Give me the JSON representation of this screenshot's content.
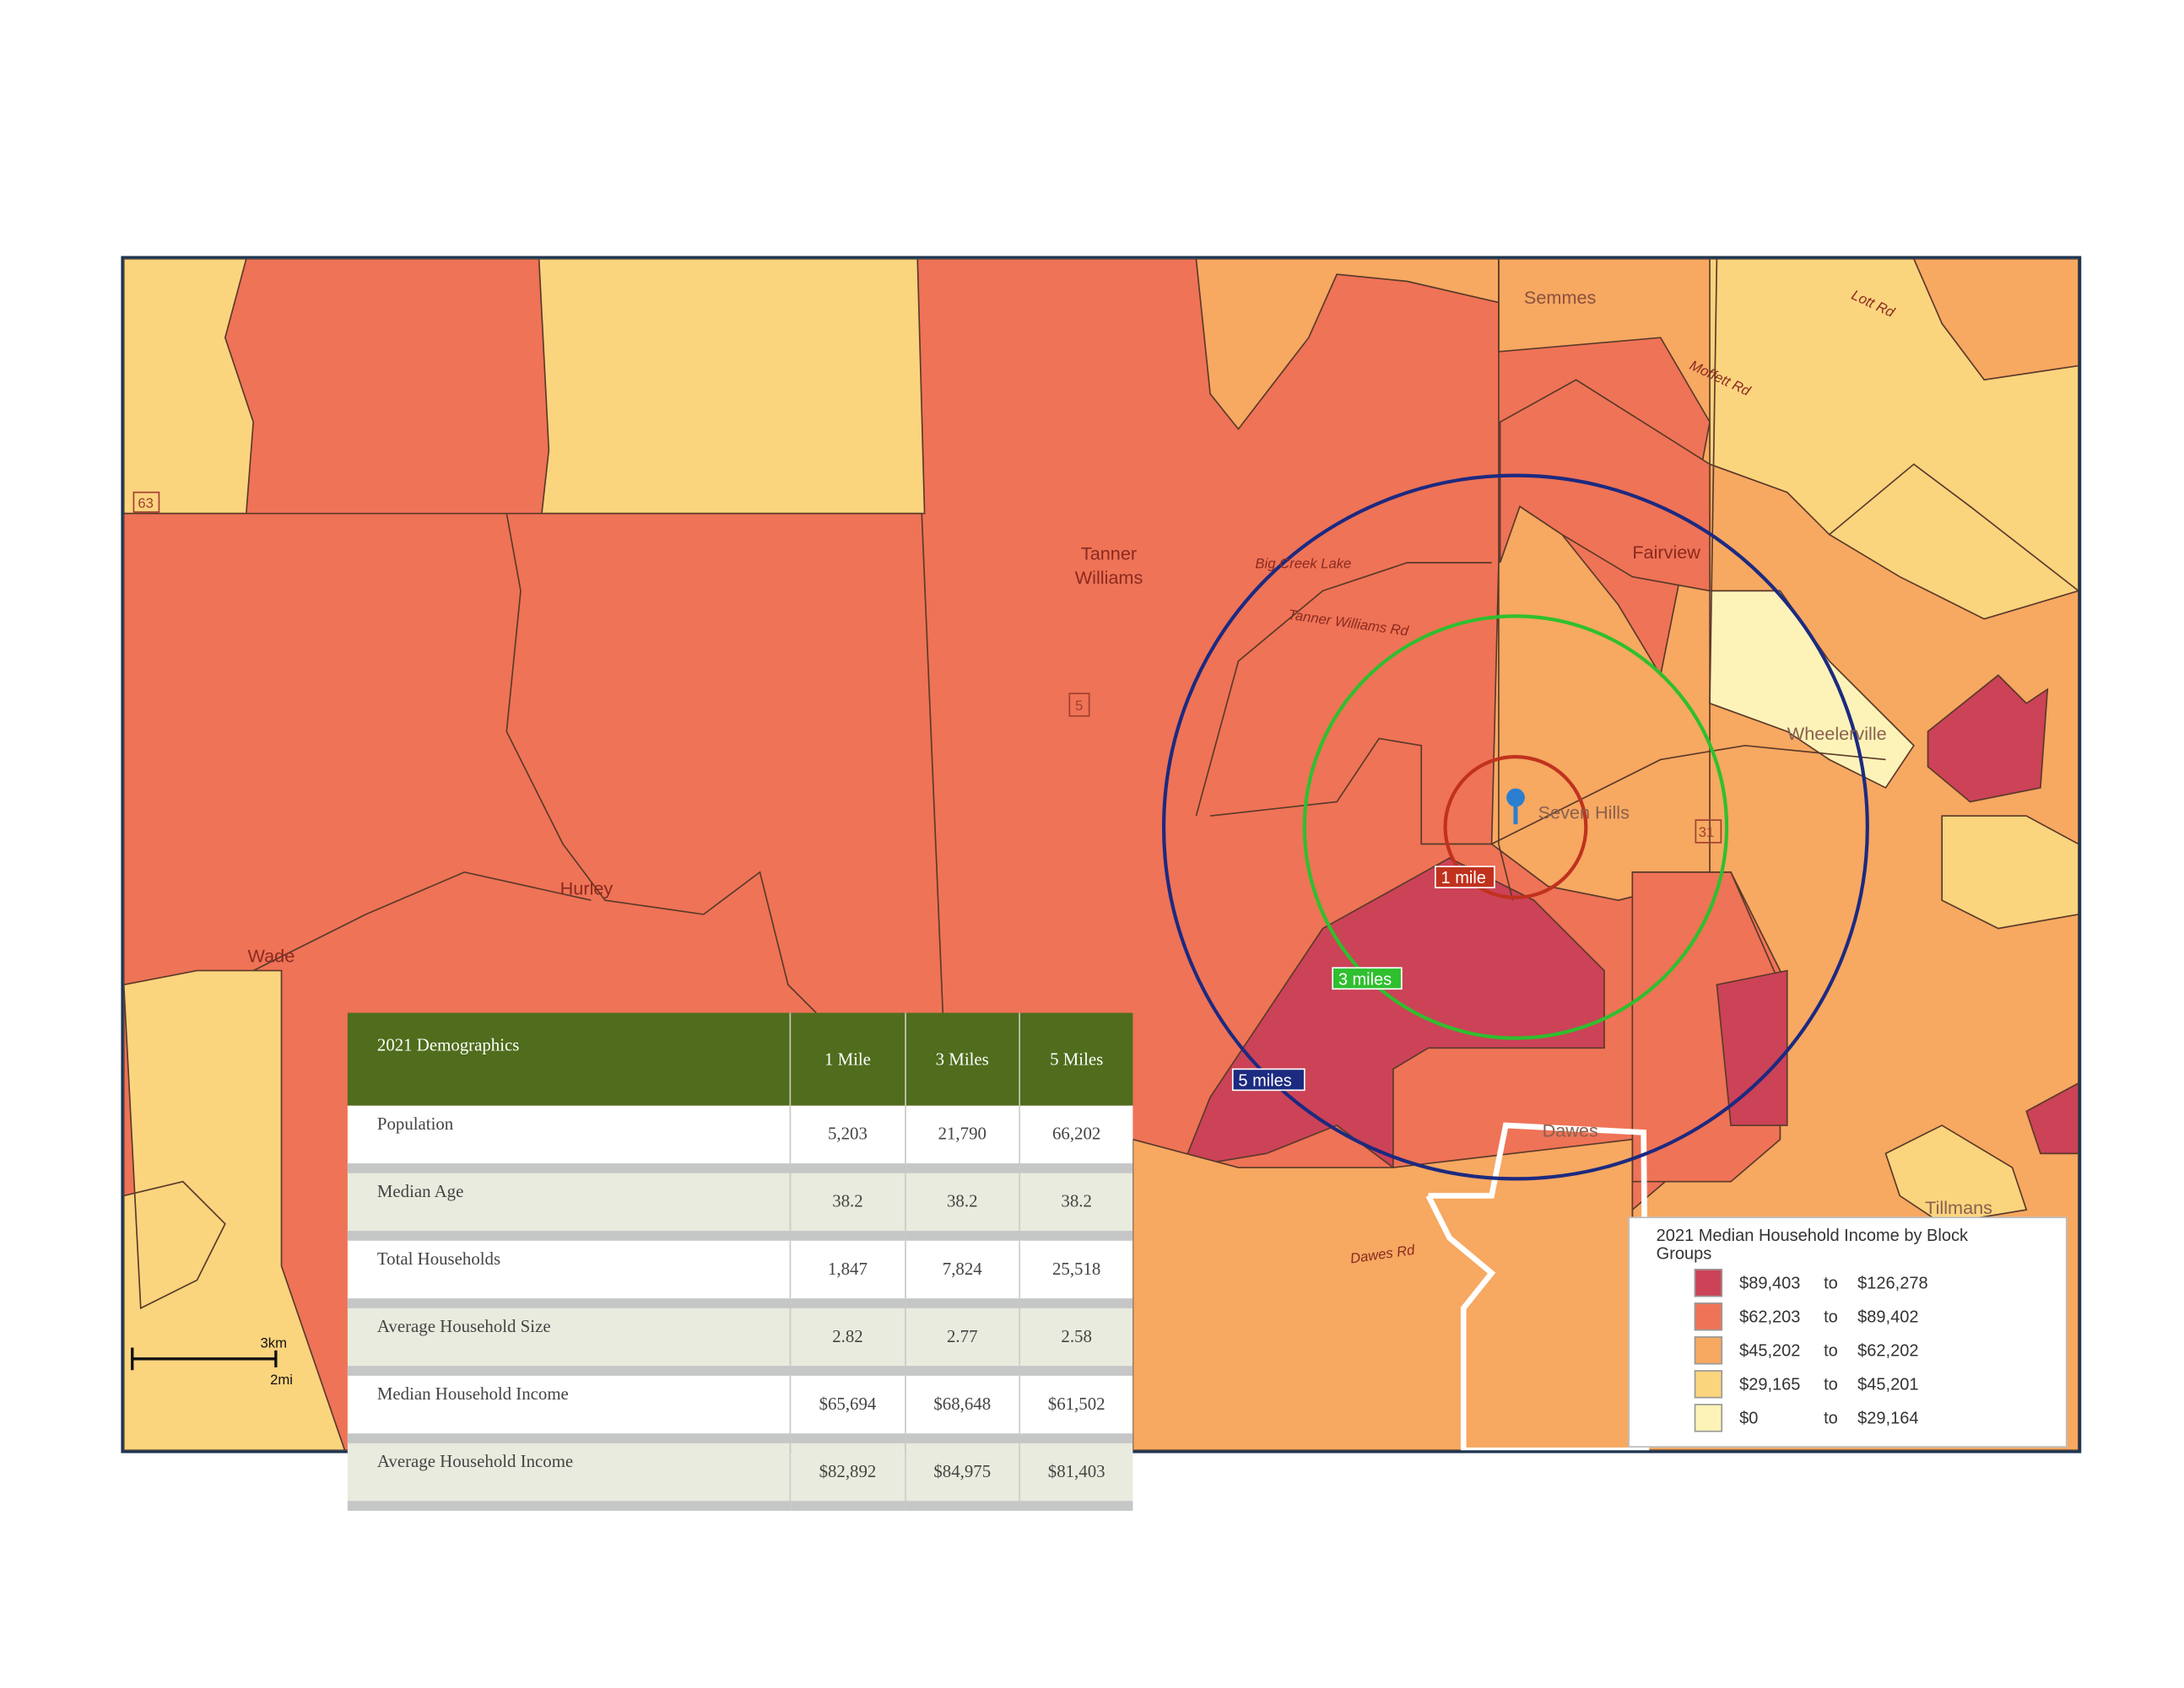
{
  "map": {
    "places": [
      "Semmes",
      "Tanner\nWilliams",
      "Fairview",
      "Big Creek\nLake",
      "Tanner Williams Rd",
      "Wheelerville",
      "Seven Hills",
      "Hurley",
      "Wade",
      "Dawes",
      "Tillmans",
      "Dawes Rd",
      "Moffett Rd",
      "Lott Rd"
    ],
    "route_shields": [
      "63",
      "5",
      "31"
    ],
    "radius_labels": {
      "one": "1 mile",
      "three": "3 miles",
      "five": "5 miles"
    },
    "radius_colors": {
      "one": "#c0321e",
      "three": "#2fbf2f",
      "five": "#1c2a80"
    },
    "scale_bar": {
      "km": "3km",
      "mi": "2mi"
    }
  },
  "table": {
    "headers": [
      "2021 Demographics",
      "1 Mile",
      "3 Miles",
      "5 Miles"
    ],
    "rows": [
      {
        "label": "Population",
        "values": [
          "5,203",
          "21,790",
          "66,202"
        ]
      },
      {
        "label": "Median Age",
        "values": [
          "38.2",
          "38.2",
          "38.2"
        ]
      },
      {
        "label": "Total Households",
        "values": [
          "1,847",
          "7,824",
          "25,518"
        ]
      },
      {
        "label": "Average Household Size",
        "values": [
          "2.82",
          "2.77",
          "2.58"
        ]
      },
      {
        "label": "Median Household Income",
        "values": [
          "$65,694",
          "$68,648",
          "$61,502"
        ]
      },
      {
        "label": "Average Household Income",
        "values": [
          "$82,892",
          "$84,975",
          "$81,403"
        ]
      }
    ]
  },
  "legend": {
    "title": "2021 Median Household Income by Block Groups",
    "items": [
      {
        "from": "$89,403",
        "to_word": "to",
        "to": "$126,278",
        "color": "#cc4257"
      },
      {
        "from": "$62,203",
        "to_word": "to",
        "to": "$89,402",
        "color": "#ef7356"
      },
      {
        "from": "$45,202",
        "to_word": "to",
        "to": "$62,202",
        "color": "#f7a861"
      },
      {
        "from": "$29,165",
        "to_word": "to",
        "to": "$45,201",
        "color": "#fbd47e"
      },
      {
        "from": "$0",
        "to_word": "to",
        "to": "$29,164",
        "color": "#fdf3b8"
      }
    ]
  }
}
